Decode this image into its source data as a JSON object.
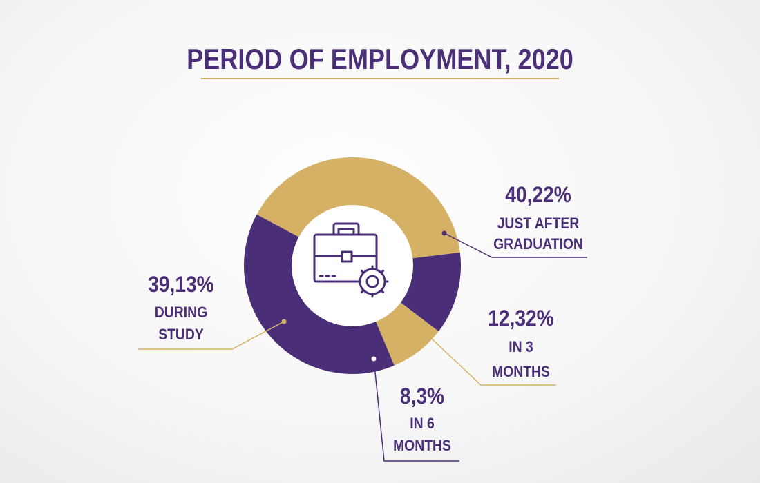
{
  "chart_data": {
    "type": "pie",
    "title": "PERIOD OF EMPLOYMENT, 2020",
    "slices": [
      {
        "percent_label": "40,22%",
        "value": 40.22,
        "desc": [
          "JUST AFTER",
          "GRADUATION"
        ],
        "color": "#d5b166"
      },
      {
        "percent_label": "12,32%",
        "value": 12.32,
        "desc": [
          "IN 3",
          "MONTHS"
        ],
        "color": "#4a2f78"
      },
      {
        "percent_label": "8,3%",
        "value": 8.3,
        "desc": [
          "IN 6",
          "MONTHS"
        ],
        "color": "#d5b166"
      },
      {
        "percent_label": "39,13%",
        "value": 39.13,
        "desc": [
          "DURING",
          "STUDY"
        ],
        "color": "#4a2f78"
      }
    ],
    "center_icon": "briefcase-gear-icon",
    "colors": {
      "text": "#4a2f78",
      "accent": "#d5b166",
      "purple": "#4a2f78"
    }
  }
}
